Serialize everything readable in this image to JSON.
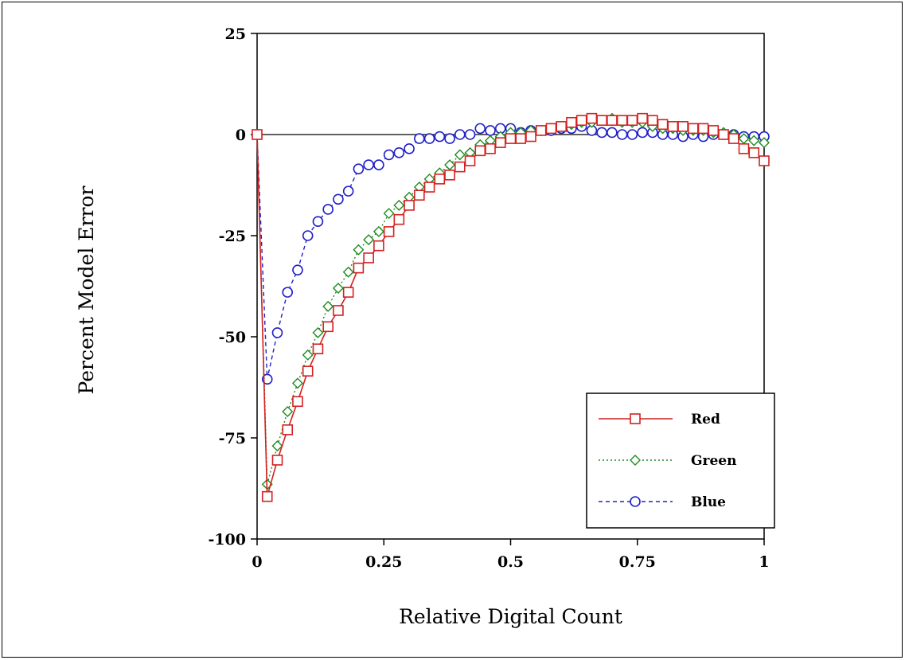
{
  "chart_data": {
    "type": "line",
    "title": "",
    "xlabel": "Relative Digital Count",
    "ylabel": "Percent Model Error",
    "xlim": [
      0,
      1
    ],
    "ylim": [
      -100,
      25
    ],
    "xticks": [
      0,
      0.25,
      0.5,
      0.75,
      1
    ],
    "xtick_labels": [
      "0",
      "0.25",
      "0.5",
      "0.75",
      "1"
    ],
    "yticks": [
      25,
      0,
      -25,
      -50,
      -75,
      -100
    ],
    "ytick_labels": [
      "25",
      "0",
      "-25",
      "-50",
      "-75",
      "-100"
    ],
    "grid": false,
    "zero_line": true,
    "legend_position": "bottom-right",
    "series": [
      {
        "name": "Red",
        "color": "#d42020",
        "line_style": "solid",
        "marker": "square",
        "x": [
          0,
          0.02,
          0.04,
          0.06,
          0.08,
          0.1,
          0.12,
          0.14,
          0.16,
          0.18,
          0.2,
          0.22,
          0.24,
          0.26,
          0.28,
          0.3,
          0.32,
          0.34,
          0.36,
          0.38,
          0.4,
          0.42,
          0.44,
          0.46,
          0.48,
          0.5,
          0.52,
          0.54,
          0.56,
          0.58,
          0.6,
          0.62,
          0.64,
          0.66,
          0.68,
          0.7,
          0.72,
          0.74,
          0.76,
          0.78,
          0.8,
          0.82,
          0.84,
          0.86,
          0.88,
          0.9,
          0.92,
          0.94,
          0.96,
          0.98,
          1
        ],
        "values": [
          0,
          -89.5,
          -80.5,
          -73,
          -66,
          -58.5,
          -53,
          -47.5,
          -43.5,
          -39,
          -33,
          -30.5,
          -27.5,
          -24,
          -21,
          -17.5,
          -15,
          -13,
          -11,
          -10,
          -8,
          -6.5,
          -4,
          -3.5,
          -2,
          -1,
          -1,
          -0.5,
          1,
          1.5,
          2,
          3,
          3.5,
          4,
          3.5,
          3.5,
          3.5,
          3.5,
          4,
          3.5,
          2.5,
          2,
          2,
          1.5,
          1.5,
          1,
          0,
          -1,
          -3.5,
          -4.5,
          -6.5
        ]
      },
      {
        "name": "Green",
        "color": "#1e8c1e",
        "line_style": "dotted",
        "marker": "diamond",
        "x": [
          0,
          0.02,
          0.04,
          0.06,
          0.08,
          0.1,
          0.12,
          0.14,
          0.16,
          0.18,
          0.2,
          0.22,
          0.24,
          0.26,
          0.28,
          0.3,
          0.32,
          0.34,
          0.36,
          0.38,
          0.4,
          0.42,
          0.44,
          0.46,
          0.48,
          0.5,
          0.52,
          0.54,
          0.56,
          0.58,
          0.6,
          0.62,
          0.64,
          0.66,
          0.68,
          0.7,
          0.72,
          0.74,
          0.76,
          0.78,
          0.8,
          0.82,
          0.84,
          0.86,
          0.88,
          0.9,
          0.92,
          0.94,
          0.96,
          0.98,
          1
        ],
        "values": [
          0,
          -86.5,
          -77,
          -68.5,
          -61.5,
          -54.5,
          -49,
          -42.5,
          -38,
          -34,
          -28.5,
          -26,
          -24,
          -19.5,
          -17.5,
          -15.5,
          -13,
          -11,
          -9.5,
          -7.5,
          -5,
          -4.5,
          -2.5,
          -1.5,
          -0.5,
          0.5,
          0.5,
          1,
          1,
          1.5,
          2,
          2.5,
          3,
          3,
          3.5,
          4,
          3,
          3,
          3,
          2,
          1.5,
          1.5,
          1,
          1,
          1,
          0.5,
          0.5,
          0,
          -1,
          -1.5,
          -2
        ]
      },
      {
        "name": "Blue",
        "color": "#2020c8",
        "line_style": "dashed",
        "marker": "circle",
        "x": [
          0,
          0.02,
          0.04,
          0.06,
          0.08,
          0.1,
          0.12,
          0.14,
          0.16,
          0.18,
          0.2,
          0.22,
          0.24,
          0.26,
          0.28,
          0.3,
          0.32,
          0.34,
          0.36,
          0.38,
          0.4,
          0.42,
          0.44,
          0.46,
          0.48,
          0.5,
          0.52,
          0.54,
          0.56,
          0.58,
          0.6,
          0.62,
          0.64,
          0.66,
          0.68,
          0.7,
          0.72,
          0.74,
          0.76,
          0.78,
          0.8,
          0.82,
          0.84,
          0.86,
          0.88,
          0.9,
          0.92,
          0.94,
          0.96,
          0.98,
          1
        ],
        "values": [
          0,
          -60.5,
          -49,
          -39,
          -33.5,
          -25,
          -21.5,
          -18.5,
          -16,
          -14,
          -8.5,
          -7.5,
          -7.5,
          -5,
          -4.5,
          -3.5,
          -1,
          -1,
          -0.5,
          -1,
          0,
          0,
          1.5,
          1,
          1.5,
          1.5,
          0.5,
          1,
          1,
          1,
          1.5,
          1.5,
          2,
          1,
          0.5,
          0.5,
          0,
          0,
          0.5,
          0.5,
          0,
          0,
          -0.5,
          0,
          -0.5,
          0,
          0,
          0,
          -0.5,
          -0.5,
          -0.5
        ]
      }
    ]
  }
}
